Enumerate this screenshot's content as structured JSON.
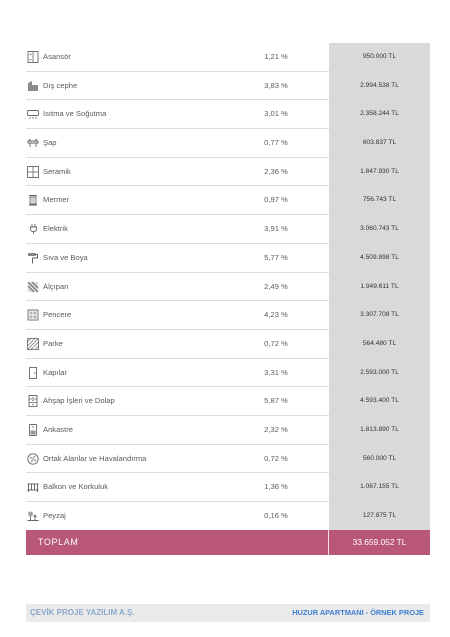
{
  "rows": [
    {
      "icon": "elevator-icon",
      "label": "Asansör",
      "pct": "1,21 %",
      "amount": "950.000 TL"
    },
    {
      "icon": "facade-icon",
      "label": "Dış cephe",
      "pct": "3,83 %",
      "amount": "2.994.538 TL"
    },
    {
      "icon": "air-conditioner-icon",
      "label": "Isıtma ve Soğutma",
      "pct": "3,01 %",
      "amount": "2.358.244 TL"
    },
    {
      "icon": "screed-icon",
      "label": "Şap",
      "pct": "0,77 %",
      "amount": "603.837 TL"
    },
    {
      "icon": "tile-icon",
      "label": "Seramik",
      "pct": "2,36 %",
      "amount": "1.847.930 TL"
    },
    {
      "icon": "marble-icon",
      "label": "Mermer",
      "pct": "0,97 %",
      "amount": "756.743 TL"
    },
    {
      "icon": "electric-plug-icon",
      "label": "Elektrik",
      "pct": "3,91 %",
      "amount": "3.060.743 TL"
    },
    {
      "icon": "paint-roller-icon",
      "label": "Sıva ve Boya",
      "pct": "5,77 %",
      "amount": "4.509.898 TL"
    },
    {
      "icon": "drywall-icon",
      "label": "Alçıpan",
      "pct": "2,49 %",
      "amount": "1.949.611 TL"
    },
    {
      "icon": "window-icon",
      "label": "Pencere",
      "pct": "4,23 %",
      "amount": "3.307.708 TL"
    },
    {
      "icon": "parquet-icon",
      "label": "Parke",
      "pct": "0,72 %",
      "amount": "564.480 TL"
    },
    {
      "icon": "door-icon",
      "label": "Kapılar",
      "pct": "3,31 %",
      "amount": "2.593.000 TL"
    },
    {
      "icon": "cabinet-icon",
      "label": "Ahşap İşleri ve Dolap",
      "pct": "5,87 %",
      "amount": "4.593.400 TL"
    },
    {
      "icon": "fixtures-icon",
      "label": "Ankastre",
      "pct": "2,32 %",
      "amount": "1.813.890 TL"
    },
    {
      "icon": "ventilation-fan-icon",
      "label": "Ortak Alanlar ve Havalandırma",
      "pct": "0,72 %",
      "amount": "560.000 TL"
    },
    {
      "icon": "railing-icon",
      "label": "Balkon ve Korkuluk",
      "pct": "1,36 %",
      "amount": "1.067.155 TL"
    },
    {
      "icon": "landscape-icon",
      "label": "Peyzaj",
      "pct": "0,16 %",
      "amount": "127.875 TL"
    }
  ],
  "total": {
    "label": "TOPLAM",
    "amount": "33.659.052 TL"
  },
  "footer": {
    "company": "ÇEVİK PROJE YAZILIM A.Ş.",
    "project": "HUZUR APARTMANI - ÖRNEK PROJE"
  },
  "colors": {
    "total_bg": "#b8577a",
    "amount_bg": "#d9d9d9",
    "footer_bg": "#eaeaea",
    "company_text": "#8aa9cf",
    "project_text": "#3d7fd1"
  }
}
